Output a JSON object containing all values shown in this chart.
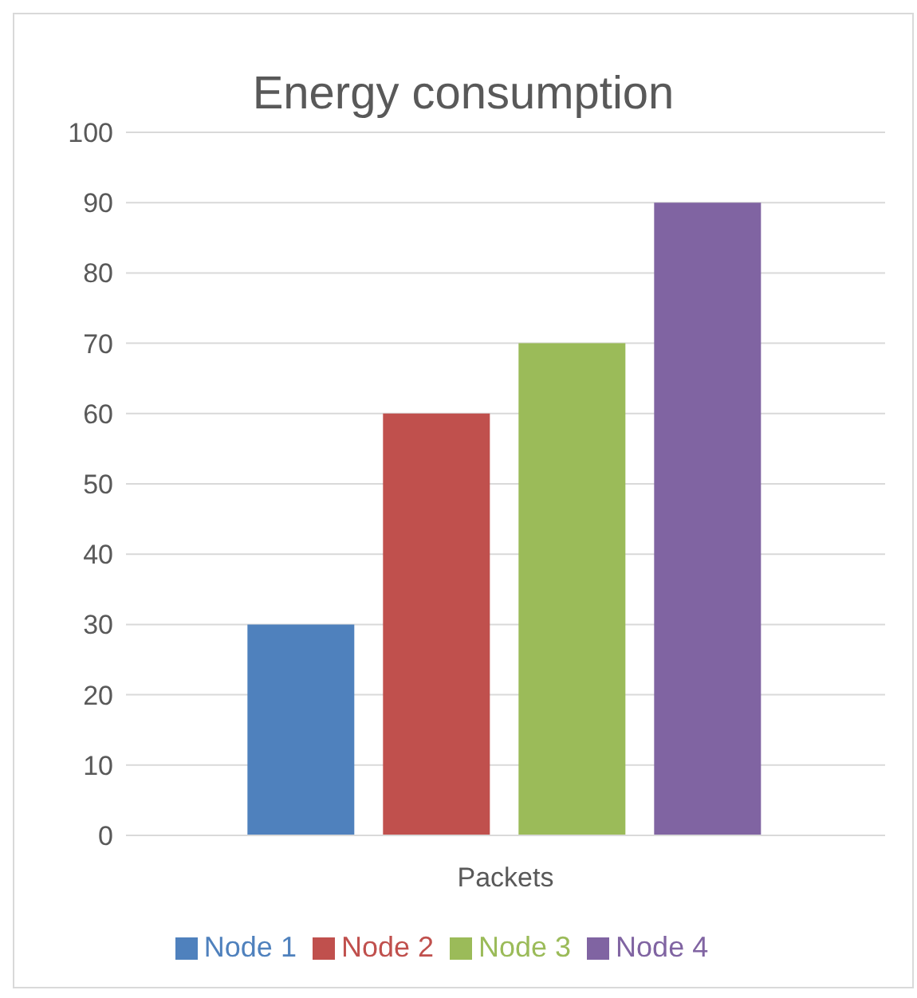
{
  "chart_data": {
    "type": "bar",
    "title": "Energy consumption",
    "categories": [
      "Packets"
    ],
    "series": [
      {
        "name": "Node 1",
        "color": "#4f81bd",
        "values": [
          30
        ]
      },
      {
        "name": "Node 2",
        "color": "#c0504d",
        "values": [
          60
        ]
      },
      {
        "name": "Node 3",
        "color": "#9bbb59",
        "values": [
          70
        ]
      },
      {
        "name": "Node 4",
        "color": "#8064a2",
        "values": [
          90
        ]
      }
    ],
    "ylim": [
      0,
      100
    ],
    "yticks": [
      0,
      10,
      20,
      30,
      40,
      50,
      60,
      70,
      80,
      90,
      100
    ],
    "grid": "y",
    "legend": "bottom"
  }
}
